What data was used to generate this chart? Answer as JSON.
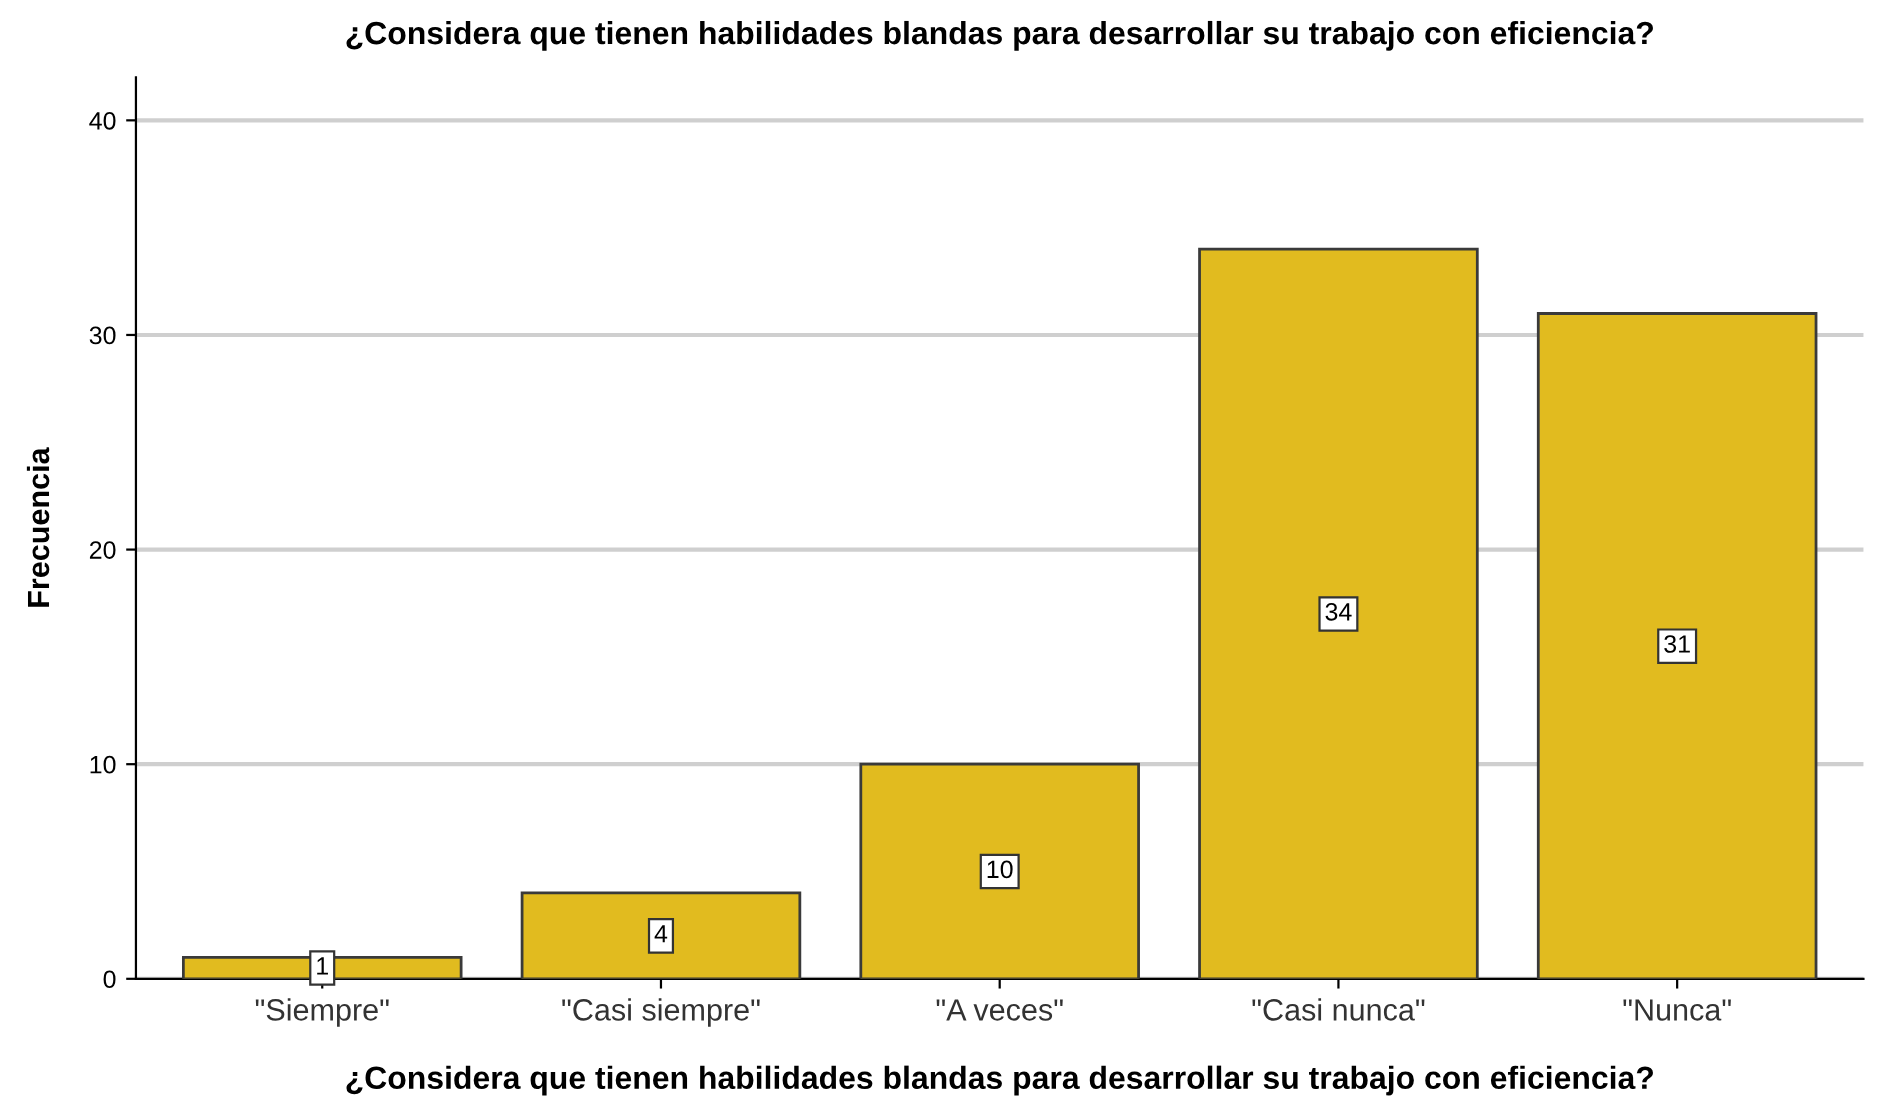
{
  "chart_data": {
    "type": "bar",
    "title": "¿Considera que tienen habilidades blandas para desarrollar su trabajo con eficiencia?",
    "xlabel": "¿Considera que tienen habilidades blandas para desarrollar su trabajo con eficiencia?",
    "ylabel": "Frecuencia",
    "categories": [
      "\"Siempre\"",
      "\"Casi siempre\"",
      "\"A veces\"",
      "\"Casi nunca\"",
      "\"Nunca\""
    ],
    "values": [
      1,
      4,
      10,
      34,
      31
    ],
    "color": "#e1bb1f",
    "ylim": [
      0,
      42
    ],
    "yticks": [
      0,
      10,
      20,
      30,
      40
    ],
    "grid": "y",
    "data_labels": true
  }
}
